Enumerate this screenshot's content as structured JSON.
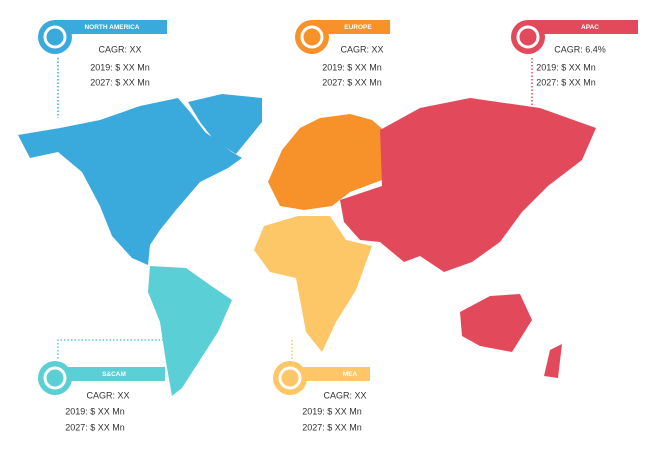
{
  "regions": [
    {
      "name": "NORTH AMERICA",
      "cagr": "CAGR: XX",
      "y2019": "2019: $ XX Mn",
      "y2027": "2027: $ XX Mn"
    },
    {
      "name": "EUROPE",
      "cagr": "CAGR: XX",
      "y2019": "2019: $ XX Mn",
      "y2027": "2027: $ XX Mn"
    },
    {
      "name": "APAC",
      "cagr": "CAGR: 6.4%",
      "y2019": "2019: $ XX Mn",
      "y2027": "2027: $ XX Mn"
    },
    {
      "name": "S&CAM",
      "cagr": "CAGR: XX",
      "y2019": "2019: $ XX Mn",
      "y2027": "2027: $ XX Mn"
    },
    {
      "name": "MEA",
      "cagr": "CAGR: XX",
      "y2019": "2019: $ XX Mn",
      "y2027": "2027: $ XX Mn"
    }
  ]
}
